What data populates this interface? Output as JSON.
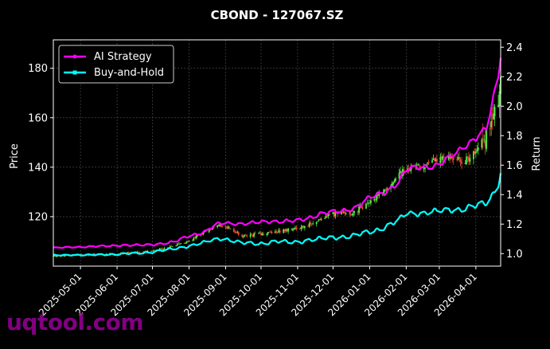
{
  "title": "CBOND - 127067.SZ",
  "watermark": "uqtool.com",
  "colors": {
    "background": "#000000",
    "ai_strategy": "#ff00ff",
    "buy_hold": "#00ffff",
    "candle_up": "#55ee44",
    "candle_down": "#ee4433",
    "grid": "#555555",
    "text": "#ffffff",
    "watermark": "#990099"
  },
  "chart_data": {
    "type": "line",
    "x_axis": {
      "type": "date",
      "range": [
        "2025-04-08",
        "2026-04-22"
      ],
      "ticks": [
        "2025-05-01",
        "2025-06-01",
        "2025-07-01",
        "2025-08-01",
        "2025-09-01",
        "2025-10-01",
        "2025-11-01",
        "2025-12-01",
        "2026-01-01",
        "2026-02-01",
        "2026-03-01",
        "2026-04-01"
      ]
    },
    "y_left": {
      "label": "Price",
      "range": [
        100,
        191.5
      ],
      "ticks": [
        120,
        140,
        160,
        180
      ]
    },
    "y_right": {
      "label": "Return",
      "range": [
        0.915,
        2.45
      ],
      "ticks": [
        1.0,
        1.2,
        1.4,
        1.6,
        1.8,
        2.0,
        2.2,
        2.4
      ]
    },
    "grid": true,
    "legend_position": "top-left",
    "series": [
      {
        "name": "AI Strategy",
        "axis": "right",
        "points": [
          [
            "2025-04-08",
            1.04
          ],
          [
            "2025-05-01",
            1.045
          ],
          [
            "2025-06-01",
            1.055
          ],
          [
            "2025-07-01",
            1.06
          ],
          [
            "2025-07-20",
            1.08
          ],
          [
            "2025-08-01",
            1.12
          ],
          [
            "2025-08-15",
            1.15
          ],
          [
            "2025-08-25",
            1.2
          ],
          [
            "2025-09-01",
            1.21
          ],
          [
            "2025-09-15",
            1.2
          ],
          [
            "2025-10-01",
            1.215
          ],
          [
            "2025-10-15",
            1.22
          ],
          [
            "2025-11-01",
            1.22
          ],
          [
            "2025-11-20",
            1.27
          ],
          [
            "2025-12-01",
            1.28
          ],
          [
            "2025-12-20",
            1.31
          ],
          [
            "2026-01-01",
            1.38
          ],
          [
            "2026-01-15",
            1.42
          ],
          [
            "2026-01-25",
            1.48
          ],
          [
            "2026-02-01",
            1.57
          ],
          [
            "2026-02-15",
            1.59
          ],
          [
            "2026-03-01",
            1.6
          ],
          [
            "2026-03-10",
            1.65
          ],
          [
            "2026-03-20",
            1.72
          ],
          [
            "2026-04-01",
            1.78
          ],
          [
            "2026-04-10",
            1.85
          ],
          [
            "2026-04-15",
            2.02
          ],
          [
            "2026-04-18",
            2.15
          ],
          [
            "2026-04-20",
            2.2
          ],
          [
            "2026-04-22",
            2.35
          ]
        ]
      },
      {
        "name": "Buy-and-Hold",
        "axis": "right",
        "points": [
          [
            "2025-04-08",
            0.99
          ],
          [
            "2025-05-01",
            0.99
          ],
          [
            "2025-06-01",
            0.995
          ],
          [
            "2025-07-01",
            1.01
          ],
          [
            "2025-08-01",
            1.05
          ],
          [
            "2025-08-25",
            1.1
          ],
          [
            "2025-09-01",
            1.1
          ],
          [
            "2025-09-15",
            1.07
          ],
          [
            "2025-10-01",
            1.07
          ],
          [
            "2025-10-15",
            1.08
          ],
          [
            "2025-11-01",
            1.08
          ],
          [
            "2025-11-20",
            1.1
          ],
          [
            "2025-12-01",
            1.11
          ],
          [
            "2025-12-20",
            1.12
          ],
          [
            "2026-01-01",
            1.15
          ],
          [
            "2026-01-15",
            1.18
          ],
          [
            "2026-01-25",
            1.22
          ],
          [
            "2026-02-01",
            1.28
          ],
          [
            "2026-02-15",
            1.27
          ],
          [
            "2026-03-01",
            1.29
          ],
          [
            "2026-03-10",
            1.3
          ],
          [
            "2026-03-20",
            1.3
          ],
          [
            "2026-04-01",
            1.32
          ],
          [
            "2026-04-10",
            1.35
          ],
          [
            "2026-04-15",
            1.4
          ],
          [
            "2026-04-20",
            1.47
          ],
          [
            "2026-04-22",
            1.55
          ]
        ]
      },
      {
        "name": "Price (candlestick)",
        "axis": "left",
        "style": "candlestick",
        "trend": [
          [
            "2025-04-08",
            104
          ],
          [
            "2025-05-01",
            104.5
          ],
          [
            "2025-06-01",
            105
          ],
          [
            "2025-07-01",
            106
          ],
          [
            "2025-08-01",
            110
          ],
          [
            "2025-08-25",
            117
          ],
          [
            "2025-09-01",
            116
          ],
          [
            "2025-09-15",
            112
          ],
          [
            "2025-10-01",
            113
          ],
          [
            "2025-10-15",
            114
          ],
          [
            "2025-11-01",
            115
          ],
          [
            "2025-11-20",
            119
          ],
          [
            "2025-12-01",
            121
          ],
          [
            "2025-12-20",
            122
          ],
          [
            "2026-01-01",
            126
          ],
          [
            "2026-01-15",
            131
          ],
          [
            "2026-01-25",
            136
          ],
          [
            "2026-02-01",
            140
          ],
          [
            "2026-02-15",
            140
          ],
          [
            "2026-03-01",
            143
          ],
          [
            "2026-03-10",
            144
          ],
          [
            "2026-03-20",
            142
          ],
          [
            "2026-04-01",
            146
          ],
          [
            "2026-04-10",
            152
          ],
          [
            "2026-04-15",
            158
          ],
          [
            "2026-04-20",
            166
          ],
          [
            "2026-04-22",
            178
          ]
        ]
      }
    ]
  }
}
